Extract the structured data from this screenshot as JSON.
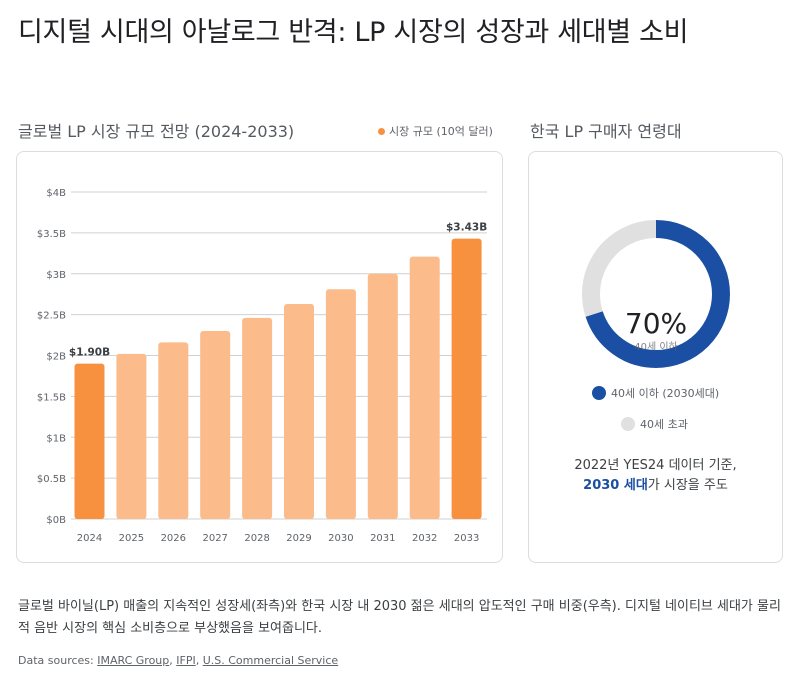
{
  "page": {
    "title": "디지털 시대의 아날로그 반격: LP 시장의 성장과 세대별 소비"
  },
  "left_panel": {
    "title": "글로벌 LP 시장 규모 전망 (2024-2033)",
    "legend_label": "시장 규모 (10억 달러)"
  },
  "right_panel": {
    "title": "한국 LP 구매자 연령대",
    "center_value": "70%",
    "center_label": "40세 이하",
    "legend": [
      {
        "label": "40세 이하 (2030세대)",
        "color": "#1a4fa3"
      },
      {
        "label": "40세 초과",
        "color": "#e0e0e0"
      }
    ],
    "note_line1": "2022년 YES24 데이터 기준,",
    "note_highlight": "2030 세대",
    "note_rest": "가 시장을 주도"
  },
  "caption": "글로벌 바이닐(LP) 매출의 지속적인 성장세(좌측)와 한국 시장 내 2030 젊은 세대의 압도적인 구매 비중(우측). 디지털 네이티브 세대가 물리적 음반 시장의 핵심 소비층으로 부상했음을 보여줍니다.",
  "sources": {
    "prefix": "Data sources: ",
    "links": [
      "IMARC Group",
      "IFPI",
      "U.S. Commercial Service"
    ]
  },
  "colors": {
    "highlight_bar": "#f79140",
    "normal_bar": "#fbbb8a",
    "donut_primary": "#1a4fa3",
    "donut_secondary": "#e0e0e0"
  },
  "chart_data": [
    {
      "type": "bar",
      "title": "글로벌 LP 시장 규모 전망 (2024-2033)",
      "xlabel": "",
      "ylabel": "",
      "legend": [
        "시장 규모 (10억 달러)"
      ],
      "legend_position": "top-right",
      "categories": [
        "2024",
        "2025",
        "2026",
        "2027",
        "2028",
        "2029",
        "2030",
        "2031",
        "2032",
        "2033"
      ],
      "values": [
        1.9,
        2.02,
        2.16,
        2.3,
        2.46,
        2.63,
        2.81,
        3.0,
        3.21,
        3.43
      ],
      "highlighted": [
        true,
        false,
        false,
        false,
        false,
        false,
        false,
        false,
        false,
        true
      ],
      "data_labels": [
        "$1.90B",
        "",
        "",
        "",
        "",
        "",
        "",
        "",
        "",
        "$3.43B"
      ],
      "ylim": [
        0,
        4
      ],
      "yticks": [
        0,
        0.5,
        1,
        1.5,
        2,
        2.5,
        3,
        3.5,
        4
      ],
      "ytick_labels": [
        "$0B",
        "$0.5B",
        "$1B",
        "$1.5B",
        "$2B",
        "$2.5B",
        "$3B",
        "$3.5B",
        "$4B"
      ],
      "grid": true
    },
    {
      "type": "pie",
      "subtype": "donut",
      "title": "한국 LP 구매자 연령대",
      "labels": [
        "40세 이하 (2030세대)",
        "40세 초과"
      ],
      "values": [
        70,
        30
      ],
      "center_text": "70%",
      "legend_position": "bottom"
    }
  ]
}
